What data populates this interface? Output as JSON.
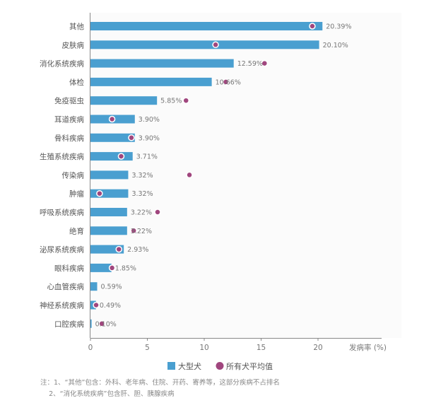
{
  "chart_data": {
    "type": "bar",
    "orientation": "horizontal",
    "categories": [
      "其他",
      "皮肤病",
      "消化系统疾病",
      "体检",
      "免疫驱虫",
      "耳道疾病",
      "骨科疾病",
      "生殖系统疾病",
      "传染病",
      "肿瘤",
      "呼吸系统疾病",
      "绝育",
      "泌尿系统疾病",
      "眼科疾病",
      "心血管疾病",
      "神经系统疾病",
      "口腔疾病"
    ],
    "series": [
      {
        "name": "大型犬",
        "values": [
          20.39,
          20.1,
          12.59,
          10.66,
          5.85,
          3.9,
          3.9,
          3.71,
          3.32,
          3.32,
          3.22,
          3.22,
          2.93,
          1.85,
          0.59,
          0.49,
          0.1
        ],
        "value_labels": [
          "20.39%",
          "20.10%",
          "12.59%",
          "10.66%",
          "5.85%",
          "3.90%",
          "3.90%",
          "3.71%",
          "3.32%",
          "3.32%",
          "3.22%",
          "3.22%",
          "2.93%",
          "1.85%",
          "0.59%",
          "0.49%",
          "0.10%"
        ],
        "color": "#4a9fd0"
      },
      {
        "name": "所有犬平均值",
        "values": [
          19.5,
          11.0,
          15.3,
          11.9,
          8.4,
          1.9,
          3.6,
          2.7,
          8.7,
          0.8,
          5.9,
          3.8,
          2.5,
          1.9,
          null,
          0.5,
          1.0
        ],
        "color": "#a0467e"
      }
    ],
    "xlim": [
      0,
      25
    ],
    "xticks": [
      0,
      5,
      10,
      15,
      20
    ],
    "xlabel": "发病率 (%)",
    "legend_position": "bottom-center",
    "grid": false
  },
  "notes": [
    "注：1、“其他”包含：外科、老年病、住院、开药、寄养等，这部分疾病不占排名",
    "    2、“消化系统疾病”包含肝、胆、胰腺疾病"
  ]
}
